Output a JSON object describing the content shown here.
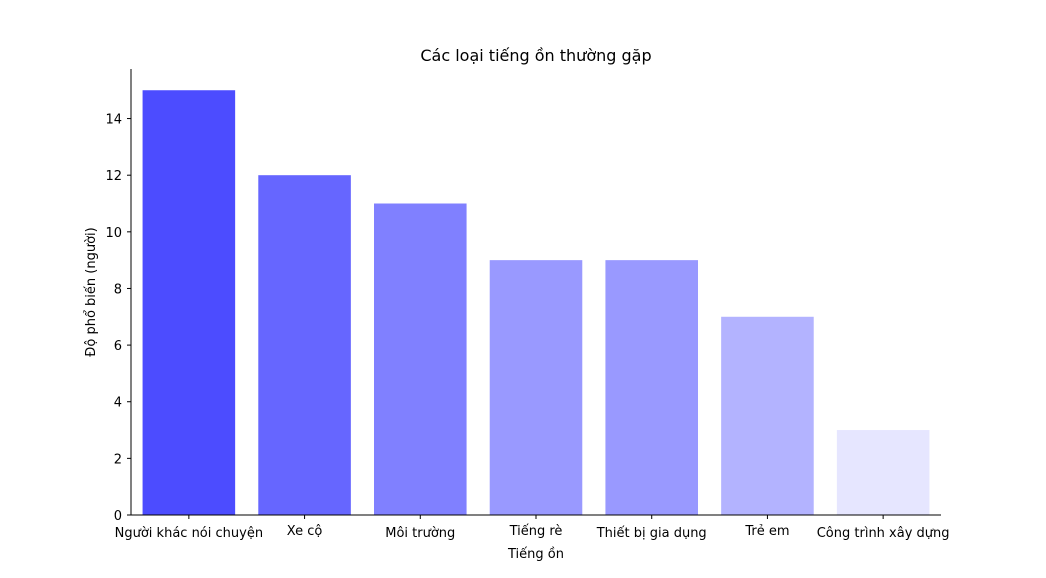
{
  "chart_data": {
    "type": "bar",
    "title": "Các loại tiếng ồn thường gặp",
    "xlabel": "Tiếng ồn",
    "ylabel": "Độ phổ biến (người)",
    "categories": [
      "Người khác nói chuyện",
      "Xe cộ",
      "Môi trường",
      "Tiếng rè",
      "Thiết bị gia dụng",
      "Trẻ em",
      "Công trình xây dựng"
    ],
    "values": [
      15,
      12,
      11,
      9,
      9,
      7,
      3
    ],
    "colors": [
      "#4c4cff",
      "#6666ff",
      "#8080ff",
      "#9999ff",
      "#9999ff",
      "#b3b3ff",
      "#e6e6ff"
    ],
    "ylim": [
      0,
      15.75
    ],
    "yticks": [
      0,
      2,
      4,
      6,
      8,
      10,
      12,
      14
    ],
    "grid": false,
    "legend": "none"
  }
}
